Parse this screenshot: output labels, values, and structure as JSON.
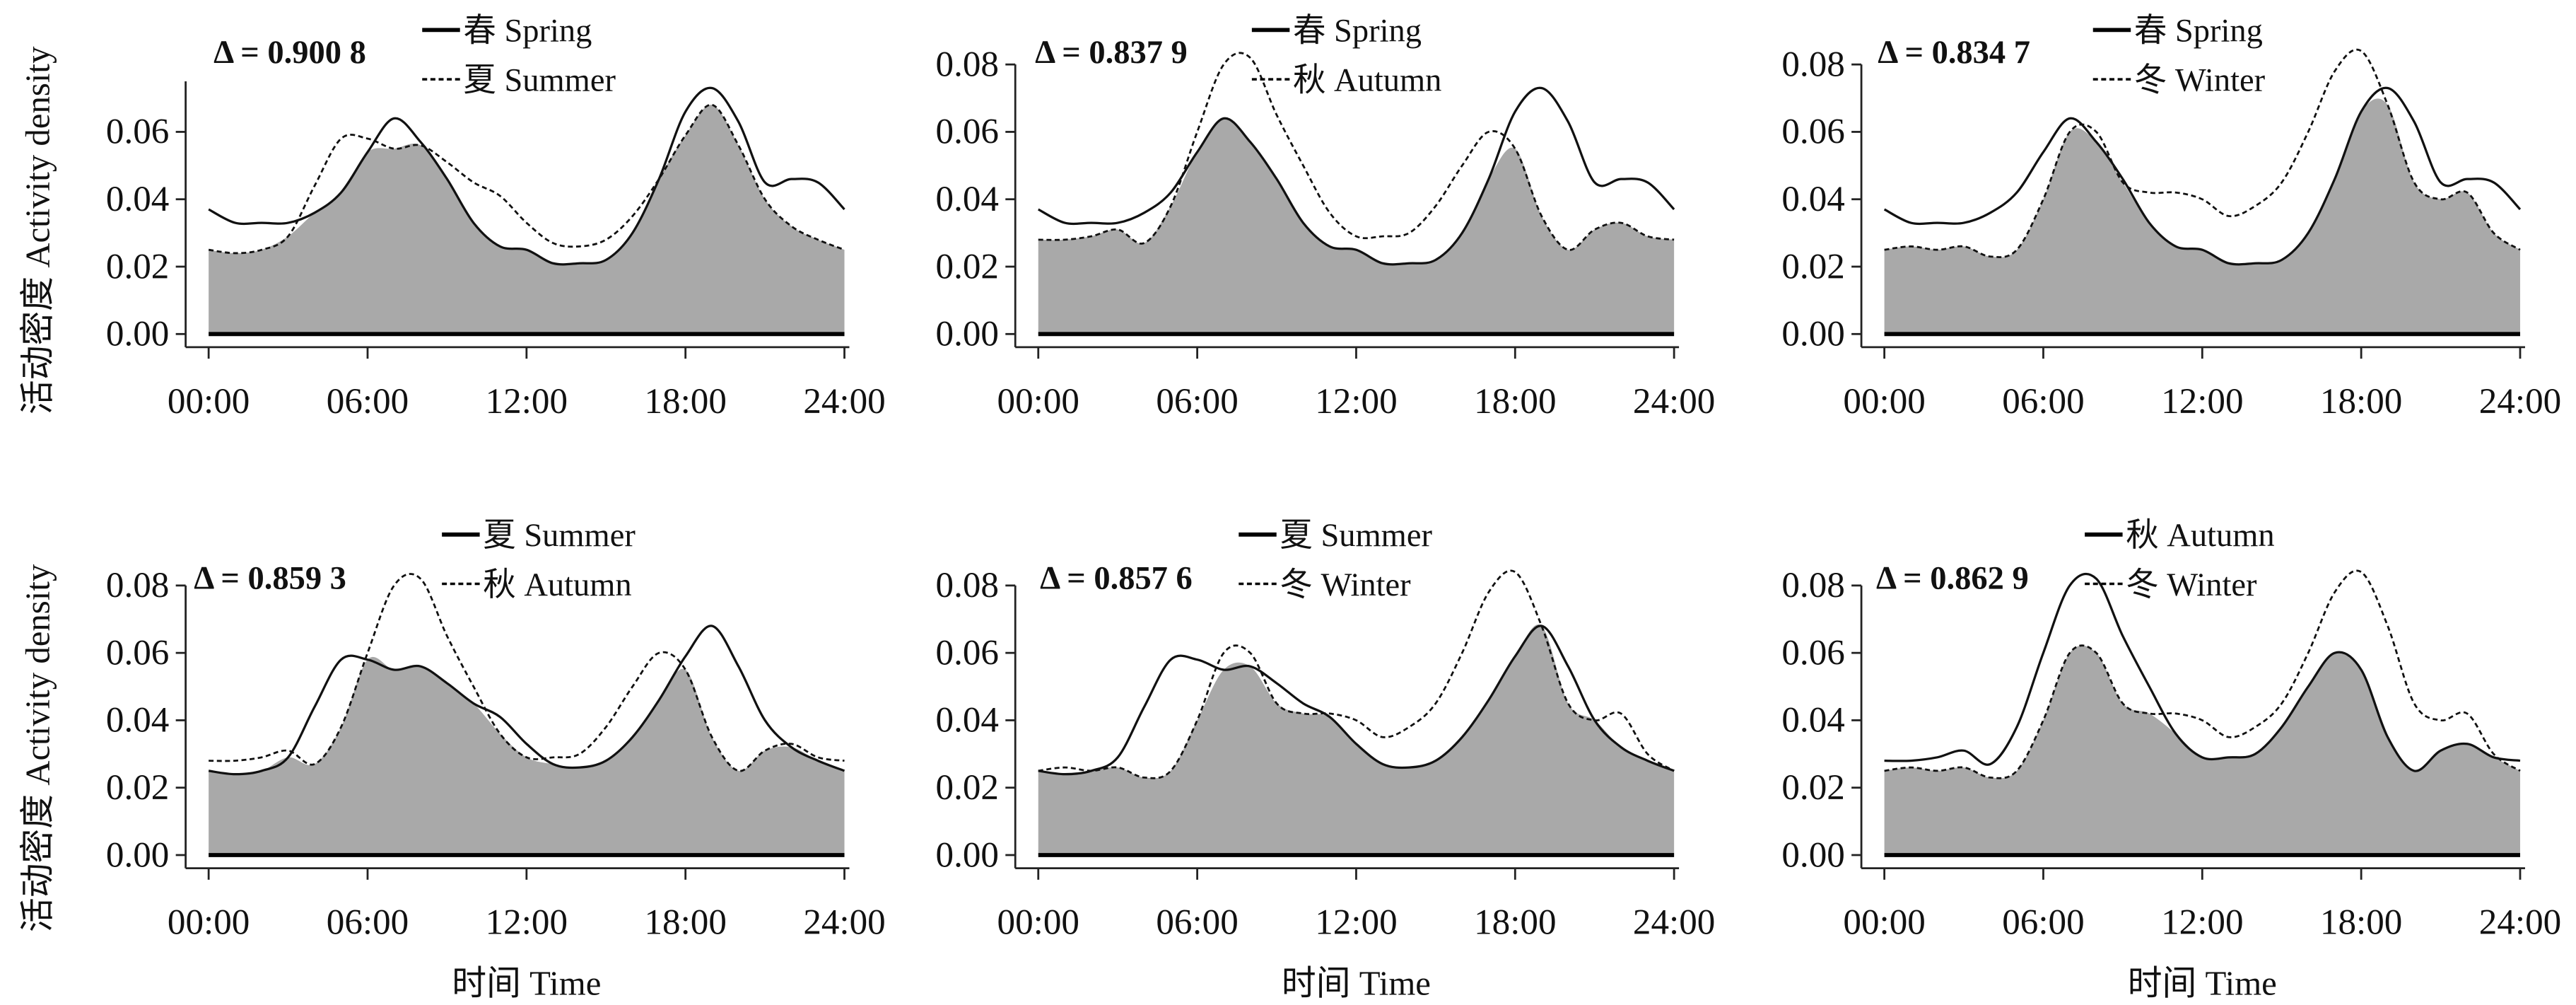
{
  "chart_data": {
    "type": "area",
    "x_hours": [
      0,
      1,
      2,
      3,
      4,
      5,
      6,
      7,
      8,
      9,
      10,
      11,
      12,
      13,
      14,
      15,
      16,
      17,
      18,
      19,
      20,
      21,
      22,
      23,
      24
    ],
    "x_tick_values": [
      0,
      6,
      12,
      18,
      24
    ],
    "x_tick_labels": [
      "00:00",
      "06:00",
      "12:00",
      "18:00",
      "24:00"
    ],
    "xlabel": "时间 Time",
    "ylabel": "活动密度 Activity density",
    "seasons": {
      "spring": {
        "label": "春 Spring",
        "values": [
          0.037,
          0.033,
          0.033,
          0.033,
          0.036,
          0.042,
          0.054,
          0.064,
          0.057,
          0.046,
          0.033,
          0.026,
          0.025,
          0.021,
          0.021,
          0.022,
          0.03,
          0.046,
          0.066,
          0.073,
          0.063,
          0.045,
          0.046,
          0.045,
          0.037
        ]
      },
      "summer": {
        "label": "夏 Summer",
        "values": [
          0.025,
          0.024,
          0.025,
          0.029,
          0.044,
          0.058,
          0.058,
          0.055,
          0.056,
          0.051,
          0.045,
          0.041,
          0.033,
          0.027,
          0.026,
          0.028,
          0.035,
          0.046,
          0.059,
          0.068,
          0.056,
          0.04,
          0.032,
          0.028,
          0.025
        ]
      },
      "autumn": {
        "label": "秋 Autumn",
        "values": [
          0.028,
          0.028,
          0.029,
          0.031,
          0.027,
          0.038,
          0.06,
          0.08,
          0.082,
          0.065,
          0.05,
          0.036,
          0.029,
          0.029,
          0.03,
          0.038,
          0.05,
          0.06,
          0.055,
          0.035,
          0.025,
          0.031,
          0.033,
          0.029,
          0.028
        ]
      },
      "winter": {
        "label": "冬 Winter",
        "values": [
          0.025,
          0.026,
          0.025,
          0.026,
          0.023,
          0.025,
          0.04,
          0.06,
          0.06,
          0.045,
          0.042,
          0.042,
          0.04,
          0.035,
          0.038,
          0.045,
          0.06,
          0.078,
          0.084,
          0.068,
          0.045,
          0.04,
          0.042,
          0.03,
          0.025
        ]
      }
    },
    "panels": [
      {
        "solid": "spring",
        "dashed": "summer",
        "delta": "Δ = 0.900 8",
        "ylim": [
          0,
          0.075
        ],
        "yticks": [
          0,
          0.02,
          0.04,
          0.06
        ],
        "ytick_labels": [
          "0.00",
          "0.02",
          "0.04",
          "0.06"
        ]
      },
      {
        "solid": "spring",
        "dashed": "autumn",
        "delta": "Δ = 0.837 9",
        "ylim": [
          0,
          0.08
        ],
        "yticks": [
          0,
          0.02,
          0.04,
          0.06,
          0.08
        ],
        "ytick_labels": [
          "0.00",
          "0.02",
          "0.04",
          "0.06",
          "0.08"
        ]
      },
      {
        "solid": "spring",
        "dashed": "winter",
        "delta": "Δ = 0.834 7",
        "ylim": [
          0,
          0.08
        ],
        "yticks": [
          0,
          0.02,
          0.04,
          0.06,
          0.08
        ],
        "ytick_labels": [
          "0.00",
          "0.02",
          "0.04",
          "0.06",
          "0.08"
        ]
      },
      {
        "solid": "summer",
        "dashed": "autumn",
        "delta": "Δ = 0.859 3",
        "ylim": [
          0,
          0.08
        ],
        "yticks": [
          0,
          0.02,
          0.04,
          0.06,
          0.08
        ],
        "ytick_labels": [
          "0.00",
          "0.02",
          "0.04",
          "0.06",
          "0.08"
        ]
      },
      {
        "solid": "summer",
        "dashed": "winter",
        "delta": "Δ = 0.857 6",
        "ylim": [
          0,
          0.08
        ],
        "yticks": [
          0,
          0.02,
          0.04,
          0.06,
          0.08
        ],
        "ytick_labels": [
          "0.00",
          "0.02",
          "0.04",
          "0.06",
          "0.08"
        ]
      },
      {
        "solid": "autumn",
        "dashed": "winter",
        "delta": "Δ = 0.862 9",
        "ylim": [
          0,
          0.08
        ],
        "yticks": [
          0,
          0.02,
          0.04,
          0.06,
          0.08
        ],
        "ytick_labels": [
          "0.00",
          "0.02",
          "0.04",
          "0.06",
          "0.08"
        ]
      }
    ],
    "colors": {
      "overlap_fill": "#a9a9a9",
      "line": "#111111"
    }
  }
}
